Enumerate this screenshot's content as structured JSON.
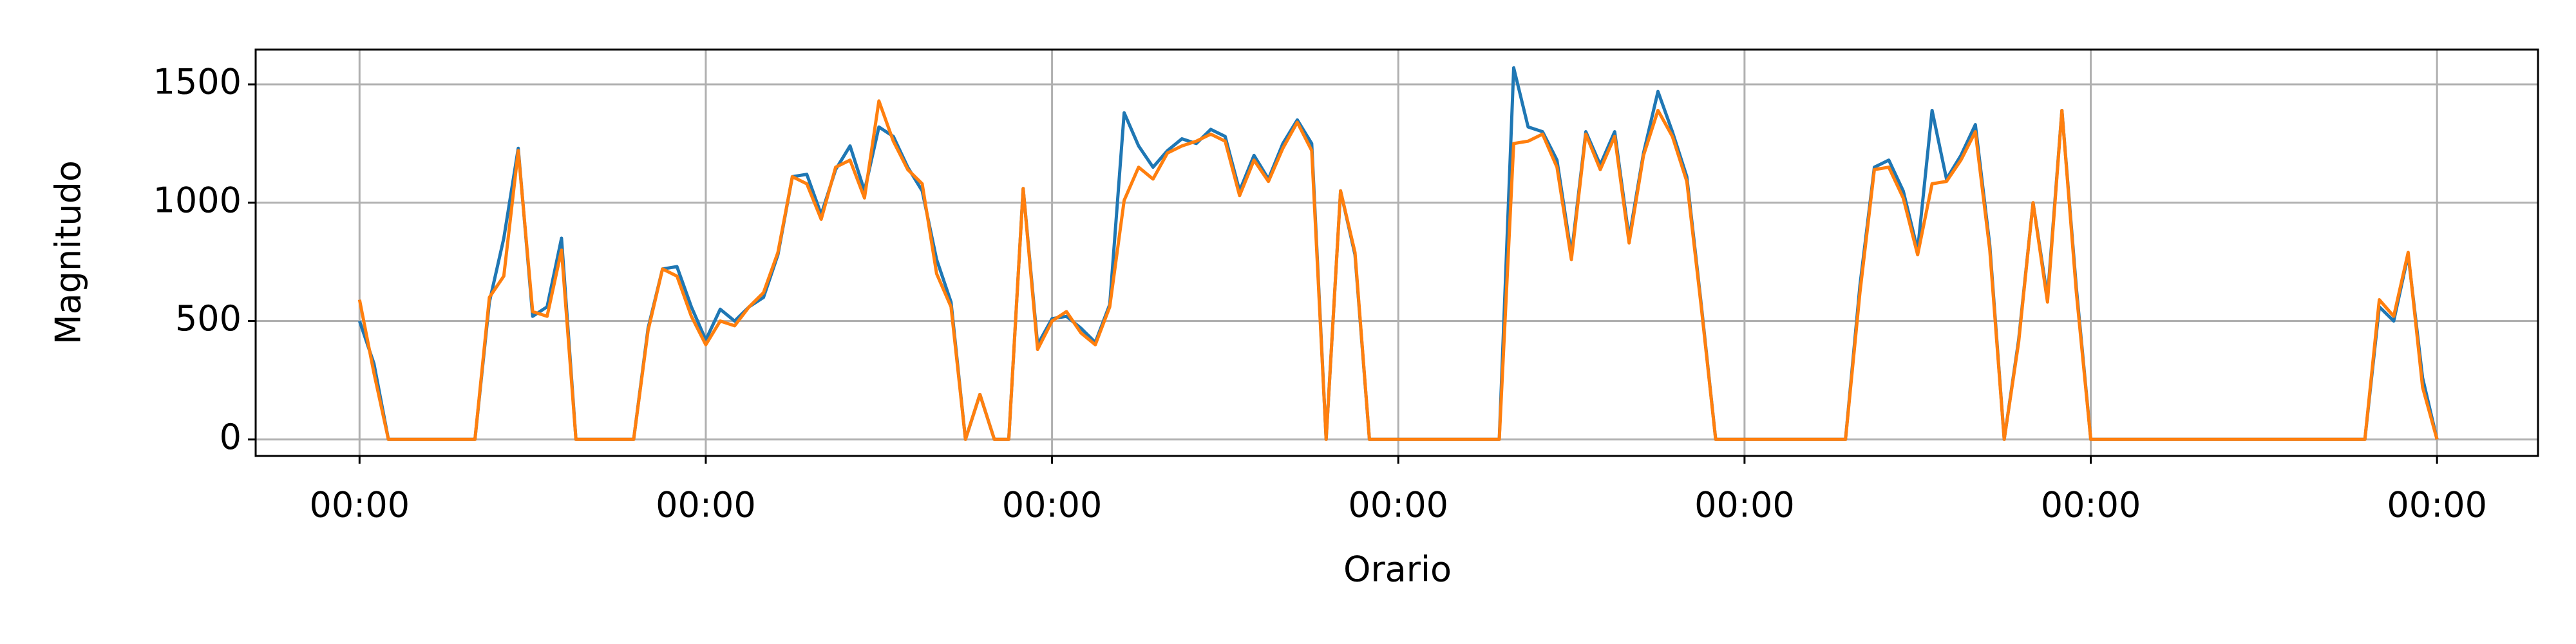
{
  "chart_data": {
    "type": "line",
    "xlabel": "Orario",
    "ylabel": "Magnitudo",
    "x": [
      0,
      1,
      2,
      3,
      4,
      5,
      6,
      7,
      8,
      9,
      10,
      11,
      12,
      13,
      14,
      15,
      16,
      17,
      18,
      19,
      20,
      21,
      22,
      23,
      24,
      25,
      26,
      27,
      28,
      29,
      30,
      31,
      32,
      33,
      34,
      35,
      36,
      37,
      38,
      39,
      40,
      41,
      42,
      43,
      44,
      45,
      46,
      47,
      48,
      49,
      50,
      51,
      52,
      53,
      54,
      55,
      56,
      57,
      58,
      59,
      60,
      61,
      62,
      63,
      64,
      65,
      66,
      67,
      68,
      69,
      70,
      71,
      72,
      73,
      74,
      75,
      76,
      77,
      78,
      79,
      80,
      81,
      82,
      83,
      84,
      85,
      86,
      87,
      88,
      89,
      90,
      91,
      92,
      93,
      94,
      95,
      96,
      97,
      98,
      99,
      100,
      101,
      102,
      103,
      104,
      105,
      106,
      107,
      108,
      109,
      110,
      111,
      112,
      113,
      114,
      115,
      116,
      117,
      118,
      119,
      120,
      121,
      122,
      123,
      124,
      125,
      126,
      127,
      128,
      129,
      130,
      131,
      132,
      133,
      134,
      135,
      136,
      137,
      138,
      139,
      140,
      141,
      142,
      143,
      144
    ],
    "series": [
      {
        "color": "#1f77b4",
        "values": [
          500,
          320,
          0,
          0,
          0,
          0,
          0,
          0,
          0,
          580,
          850,
          1230,
          520,
          560,
          850,
          0,
          0,
          0,
          0,
          0,
          470,
          720,
          730,
          560,
          420,
          550,
          500,
          560,
          600,
          780,
          1110,
          1120,
          950,
          1140,
          1240,
          1050,
          1320,
          1280,
          1150,
          1050,
          760,
          580,
          0,
          190,
          0,
          0,
          1060,
          400,
          510,
          520,
          470,
          410,
          570,
          1380,
          1240,
          1150,
          1220,
          1270,
          1250,
          1310,
          1280,
          1050,
          1200,
          1100,
          1250,
          1350,
          1250,
          0,
          1050,
          780,
          0,
          0,
          0,
          0,
          0,
          0,
          0,
          0,
          0,
          0,
          1570,
          1320,
          1300,
          1180,
          780,
          1300,
          1160,
          1300,
          850,
          1210,
          1470,
          1300,
          1110,
          570,
          0,
          0,
          0,
          0,
          0,
          0,
          0,
          0,
          0,
          0,
          650,
          1150,
          1180,
          1050,
          800,
          1390,
          1100,
          1200,
          1330,
          820,
          0,
          420,
          1000,
          600,
          1390,
          640,
          0,
          0,
          0,
          0,
          0,
          0,
          0,
          0,
          0,
          0,
          0,
          0,
          0,
          0,
          0,
          0,
          0,
          0,
          0,
          0,
          560,
          500,
          780,
          260,
          0
        ]
      },
      {
        "color": "#ff7f0e",
        "values": [
          590,
          280,
          0,
          0,
          0,
          0,
          0,
          0,
          0,
          600,
          690,
          1220,
          540,
          520,
          800,
          0,
          0,
          0,
          0,
          0,
          460,
          720,
          690,
          520,
          400,
          500,
          480,
          560,
          620,
          790,
          1110,
          1080,
          930,
          1150,
          1180,
          1020,
          1430,
          1260,
          1140,
          1080,
          700,
          560,
          0,
          190,
          0,
          0,
          1060,
          380,
          500,
          540,
          450,
          400,
          560,
          1010,
          1150,
          1100,
          1210,
          1240,
          1260,
          1290,
          1260,
          1030,
          1180,
          1090,
          1230,
          1340,
          1220,
          0,
          1050,
          790,
          0,
          0,
          0,
          0,
          0,
          0,
          0,
          0,
          0,
          0,
          1250,
          1260,
          1290,
          1150,
          760,
          1290,
          1140,
          1280,
          830,
          1200,
          1390,
          1280,
          1090,
          560,
          0,
          0,
          0,
          0,
          0,
          0,
          0,
          0,
          0,
          0,
          620,
          1140,
          1150,
          1020,
          780,
          1080,
          1090,
          1180,
          1300,
          800,
          0,
          410,
          1000,
          580,
          1390,
          620,
          0,
          0,
          0,
          0,
          0,
          0,
          0,
          0,
          0,
          0,
          0,
          0,
          0,
          0,
          0,
          0,
          0,
          0,
          0,
          0,
          590,
          520,
          790,
          220,
          0
        ]
      }
    ],
    "xlim": [
      -7.2,
      151
    ],
    "xticks": [
      {
        "value": 0,
        "label": "00:00"
      },
      {
        "value": 24,
        "label": "00:00"
      },
      {
        "value": 48,
        "label": "00:00"
      },
      {
        "value": 72,
        "label": "00:00"
      },
      {
        "value": 96,
        "label": "00:00"
      },
      {
        "value": 120,
        "label": "00:00"
      },
      {
        "value": 144,
        "label": "00:00"
      }
    ],
    "ylim": [
      -70,
      1647
    ],
    "yticks": [
      0,
      500,
      1000,
      1500
    ],
    "grid": true
  }
}
